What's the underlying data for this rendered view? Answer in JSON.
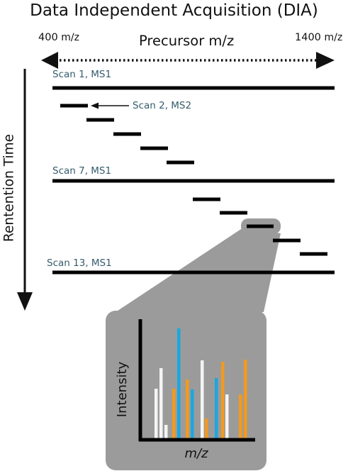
{
  "title": "Data Independent Acquisition (DIA)",
  "precursor_axis": {
    "label": "Precursor  m/z",
    "left_value": "400",
    "right_value": "1400",
    "unit": "m/z"
  },
  "retention_axis": {
    "label": "Rentention Time"
  },
  "scans": {
    "scan1": "Scan 1, MS1",
    "scan2": "Scan 2, MS2",
    "scan7": "Scan 7, MS1",
    "scan13": "Scan 13, MS1"
  },
  "inset": {
    "ylabel": "Intensity",
    "xlabel": "m/z"
  },
  "colors": {
    "text": "#111111",
    "scan_label": "#355c6c",
    "zoom_gray": "#9b9b9b",
    "blue": "#1ba7e0",
    "orange": "#f39a1e",
    "white_peak": "#f4f4f4"
  }
}
